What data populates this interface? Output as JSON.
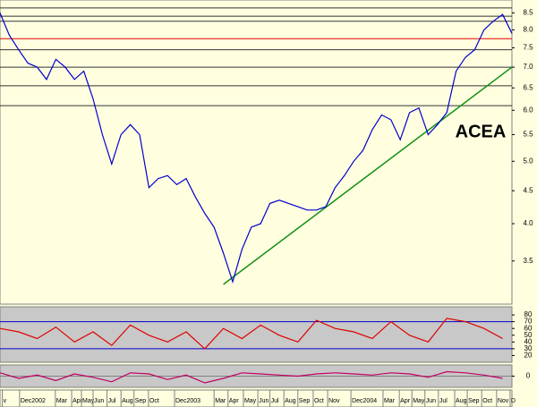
{
  "chart_data": [
    {
      "type": "line",
      "log_scale": true,
      "annotation": "ACEA",
      "background": "#ffffe0",
      "xlim": [
        0,
        110
      ],
      "ylim": [
        3.0,
        8.9
      ],
      "yticks": [
        3.5,
        {
          "value": 4,
          "label": "4.0"
        },
        4.5,
        {
          "value": 5,
          "label": "5.0"
        },
        5.5,
        {
          "value": 6,
          "label": "6.0"
        },
        6.5,
        {
          "value": 7,
          "label": "7.0"
        },
        7.5,
        {
          "value": 8,
          "label": "8.0"
        },
        8.5
      ],
      "xticks": [
        {
          "value": 0.5,
          "label": "v"
        },
        {
          "value": 4.2,
          "label": "Dec2002"
        },
        {
          "value": 11.9,
          "label": "Mar"
        },
        {
          "value": 15.4,
          "label": "Apr"
        },
        {
          "value": 17.5,
          "label": "May"
        },
        {
          "value": 20,
          "label": "Jun"
        },
        {
          "value": 23,
          "label": "Jul"
        },
        {
          "value": 26,
          "label": "Aug"
        },
        {
          "value": 28.8,
          "label": "Sep"
        },
        {
          "value": 31.9,
          "label": "Oct"
        },
        {
          "value": 37.5,
          "label": "Dec2003"
        },
        {
          "value": 46,
          "label": "Mar"
        },
        {
          "value": 49,
          "label": "Apr"
        },
        {
          "value": 52.3,
          "label": "May"
        },
        {
          "value": 55.4,
          "label": "Jun"
        },
        {
          "value": 58,
          "label": "Jul"
        },
        {
          "value": 61,
          "label": "Aug"
        },
        {
          "value": 64,
          "label": "Sep"
        },
        {
          "value": 67.3,
          "label": "Oct"
        },
        {
          "value": 70.4,
          "label": "Nov"
        },
        {
          "value": 75.4,
          "label": "Dec2004"
        },
        {
          "value": 82.3,
          "label": "Mar"
        },
        {
          "value": 85.8,
          "label": "Apr"
        },
        {
          "value": 88.5,
          "label": "May"
        },
        {
          "value": 91.3,
          "label": "Jun"
        },
        {
          "value": 94.2,
          "label": "Jul"
        },
        {
          "value": 97.7,
          "label": "Aug"
        },
        {
          "value": 100.4,
          "label": "Sep"
        },
        {
          "value": 103.5,
          "label": "Oct"
        },
        {
          "value": 106.7,
          "label": "Nov"
        },
        {
          "value": 109.6,
          "label": "D"
        }
      ],
      "hlines": [
        {
          "value": 8.65,
          "color": "#333333"
        },
        {
          "value": 8.4,
          "color": "#333333"
        },
        {
          "value": 8.25,
          "color": "#333333"
        },
        {
          "value": 7.75,
          "color": "#e00000"
        },
        {
          "value": 7.45,
          "color": "#333333"
        },
        {
          "value": 7.0,
          "color": "#333333"
        },
        {
          "value": 6.55,
          "color": "#333333"
        },
        {
          "value": 6.1,
          "color": "#333333"
        }
      ],
      "trendline": {
        "x": [
          48,
          110
        ],
        "y": [
          3.22,
          7.0
        ],
        "color": "#109010"
      },
      "x": [
        0,
        2,
        4,
        6,
        8,
        10,
        12,
        14,
        16,
        18,
        20,
        22,
        24,
        26,
        28,
        30,
        32,
        34,
        36,
        38,
        40,
        42,
        44,
        46,
        48,
        50,
        52,
        54,
        56,
        58,
        60,
        62,
        64,
        66,
        68,
        70,
        72,
        74,
        76,
        78,
        80,
        82,
        84,
        86,
        88,
        90,
        92,
        94,
        96,
        98,
        100,
        102,
        104,
        106,
        108,
        110
      ],
      "series": [
        {
          "color": "#0000cc",
          "values": [
            8.5,
            7.85,
            7.45,
            7.1,
            7.0,
            6.7,
            7.2,
            7.0,
            6.7,
            6.9,
            6.25,
            5.5,
            4.95,
            5.5,
            5.7,
            5.5,
            4.55,
            4.7,
            4.75,
            4.6,
            4.7,
            4.4,
            4.15,
            3.95,
            3.6,
            3.25,
            3.65,
            3.95,
            4.0,
            4.3,
            4.35,
            4.3,
            4.25,
            4.2,
            4.2,
            4.25,
            4.55,
            4.75,
            5.0,
            5.2,
            5.6,
            5.9,
            5.8,
            5.4,
            5.95,
            6.05,
            5.5,
            5.7,
            5.95,
            6.9,
            7.25,
            7.45,
            8.0,
            8.25,
            8.45,
            7.9
          ]
        }
      ]
    },
    {
      "type": "line",
      "background": "#c8c8c8",
      "xlim": [
        0,
        110
      ],
      "ylim": [
        10,
        92
      ],
      "yticks": [
        20,
        30,
        40,
        50,
        60,
        70,
        80
      ],
      "hlines": [
        {
          "value": 70,
          "color": "#0000cc"
        },
        {
          "value": 30,
          "color": "#0000cc"
        }
      ],
      "x": [
        0,
        4,
        8,
        12,
        16,
        20,
        24,
        28,
        32,
        36,
        40,
        44,
        48,
        52,
        56,
        60,
        64,
        68,
        72,
        76,
        80,
        84,
        88,
        92,
        96,
        100,
        104,
        108
      ],
      "series": [
        {
          "color": "#e00000",
          "values": [
            60,
            55,
            45,
            62,
            40,
            55,
            35,
            65,
            50,
            40,
            55,
            30,
            60,
            45,
            65,
            50,
            40,
            72,
            60,
            55,
            45,
            70,
            50,
            40,
            75,
            70,
            60,
            45
          ]
        }
      ]
    },
    {
      "type": "line",
      "background": "#c8c8c8",
      "xlim": [
        0,
        110
      ],
      "ylim": [
        -1,
        1
      ],
      "yticks": [
        0
      ],
      "hlines": [
        {
          "value": 0,
          "color": "#808080"
        }
      ],
      "x": [
        0,
        4,
        8,
        12,
        16,
        20,
        24,
        28,
        32,
        36,
        40,
        44,
        48,
        52,
        56,
        60,
        64,
        68,
        72,
        76,
        80,
        84,
        88,
        92,
        96,
        100,
        104,
        108
      ],
      "series": [
        {
          "color": "#c00060",
          "values": [
            0.3,
            -0.2,
            0.1,
            -0.4,
            0.2,
            -0.1,
            -0.5,
            0.3,
            0.2,
            -0.3,
            0.1,
            -0.6,
            -0.2,
            0.3,
            0.2,
            0.1,
            0,
            0.2,
            0.3,
            0.2,
            0.1,
            0.3,
            0.2,
            -0.1,
            0.4,
            0.3,
            0.1,
            -0.2
          ]
        }
      ]
    }
  ]
}
